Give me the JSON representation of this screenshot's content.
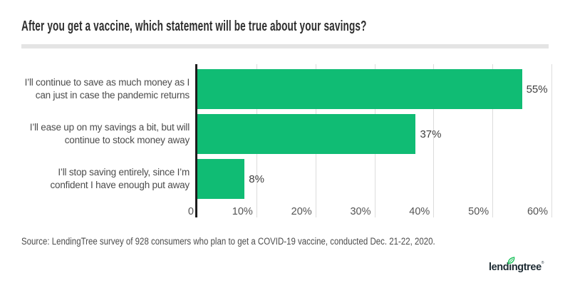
{
  "title": "After you get a vaccine, which statement will be true about your savings?",
  "source": "Source: LendingTree survey of 928 consumers who plan to get a COVID-19 vaccine, conducted Dec. 21-22, 2020.",
  "logo": {
    "brand_wordmark": "lendıngtree",
    "registered_mark": "®",
    "leaf_color": "#21c25f",
    "text_color": "#1e2b33"
  },
  "colors": {
    "bar": "#10bc74",
    "axis": "#1c1c1c",
    "gridline": "#dcdcdc",
    "divider": "#e4e4e4",
    "title_text": "#2e2e2e",
    "label_text": "#4c4c4c"
  },
  "chart_data": {
    "type": "bar",
    "orientation": "horizontal",
    "title": "After you get a vaccine, which statement will be true about your savings?",
    "categories": [
      "I’ll continue to save as much money as I\ncan just in case the pandemic returns",
      "I’ll ease up on my savings a bit, but will\ncontinue to stock money away",
      "I’ll stop saving entirely, since I’m\nconfident I have enough put away"
    ],
    "values": [
      55,
      37,
      8
    ],
    "value_labels": [
      "55%",
      "37%",
      "8%"
    ],
    "xlim": [
      0,
      60
    ],
    "xticks": [
      0,
      10,
      20,
      30,
      40,
      50,
      60
    ],
    "xtick_labels": [
      "0",
      "10%",
      "20%",
      "30%",
      "40%",
      "50%",
      "60%"
    ],
    "grid": "vertical",
    "legend": "none",
    "bar_color": "#10bc74"
  }
}
